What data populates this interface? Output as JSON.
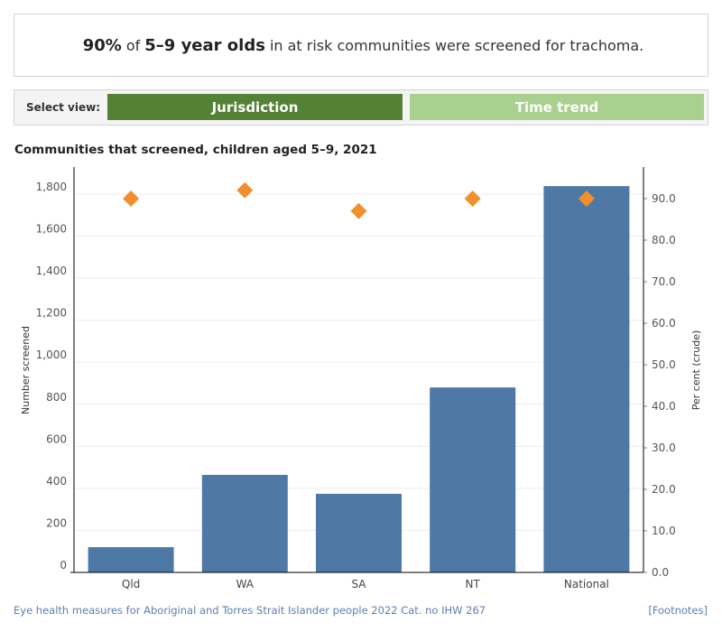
{
  "headline": {
    "pct": "90%",
    "of": "of",
    "group": "5–9 year olds",
    "rest": "in at risk communities were screened for trachoma."
  },
  "view": {
    "label": "Select view:",
    "options": [
      {
        "label": "Jurisdiction",
        "color": "#548235",
        "active": true
      },
      {
        "label": "Time trend",
        "color": "#a9d08e",
        "active": false
      }
    ]
  },
  "chart_data": {
    "type": "bar",
    "title": "Communities that screened, children aged 5–9, 2021",
    "categories": [
      "Qld",
      "WA",
      "SA",
      "NT",
      "National"
    ],
    "series": [
      {
        "name": "Number screened",
        "type": "bar",
        "axis": "left",
        "color": "#4e79a7",
        "values": [
          120,
          464,
          374,
          880,
          1838
        ]
      },
      {
        "name": "Per cent (crude)",
        "type": "scatter",
        "marker": "diamond",
        "axis": "right",
        "color": "#f28e2b",
        "values": [
          90,
          92,
          87,
          90,
          90
        ]
      }
    ],
    "ylabel": "Number screened",
    "ylabel_right": "Per cent (crude)",
    "ylim": [
      0,
      1900
    ],
    "ylim_right": [
      0,
      97
    ],
    "yticks": [
      "0",
      "200",
      "400",
      "600",
      "800",
      "1,000",
      "1,200",
      "1,400",
      "1,600",
      "1,800"
    ],
    "yticks_right": [
      "0.0",
      "10.0",
      "20.0",
      "30.0",
      "40.0",
      "50.0",
      "60.0",
      "70.0",
      "80.0",
      "90.0"
    ],
    "grid": true
  },
  "footer": {
    "source": "Eye health measures for Aboriginal and Torres Strait Islander people 2022 Cat. no IHW 267",
    "footnotes": "[Footnotes]"
  }
}
